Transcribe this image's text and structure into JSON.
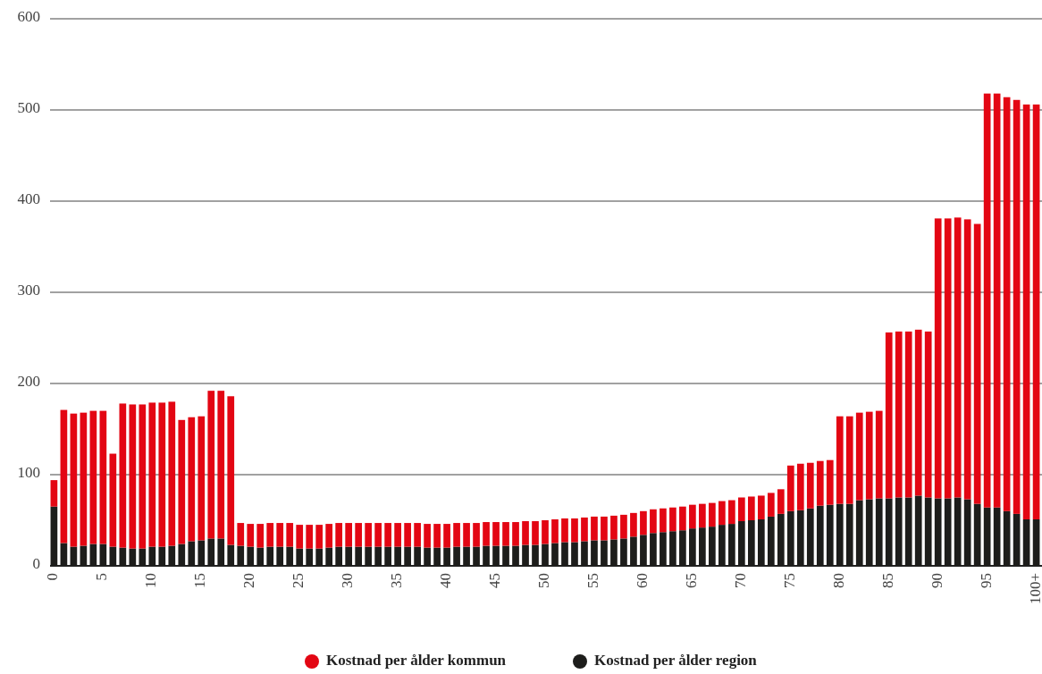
{
  "chart_data": {
    "type": "bar",
    "stacked": true,
    "categories": [
      "0",
      null,
      null,
      null,
      null,
      "5",
      null,
      null,
      null,
      null,
      "10",
      null,
      null,
      null,
      null,
      "15",
      null,
      null,
      null,
      null,
      "20",
      null,
      null,
      null,
      null,
      "25",
      null,
      null,
      null,
      null,
      "30",
      null,
      null,
      null,
      null,
      "35",
      null,
      null,
      null,
      null,
      "40",
      null,
      null,
      null,
      null,
      "45",
      null,
      null,
      null,
      null,
      "50",
      null,
      null,
      null,
      null,
      "55",
      null,
      null,
      null,
      null,
      "60",
      null,
      null,
      null,
      null,
      "65",
      null,
      null,
      null,
      null,
      "70",
      null,
      null,
      null,
      null,
      "75",
      null,
      null,
      null,
      null,
      "80",
      null,
      null,
      null,
      null,
      "85",
      null,
      null,
      null,
      null,
      "90",
      null,
      null,
      null,
      null,
      "95",
      null,
      null,
      null,
      null,
      "100+"
    ],
    "series": [
      {
        "name": "Kostnad per ålder region",
        "color": "#1d1d1b",
        "values": [
          65,
          25,
          21,
          22,
          24,
          24,
          21,
          20,
          19,
          19,
          21,
          21,
          22,
          24,
          27,
          28,
          30,
          30,
          23,
          22,
          21,
          20,
          21,
          21,
          21,
          19,
          19,
          19,
          20,
          21,
          21,
          21,
          21,
          21,
          21,
          21,
          21,
          21,
          20,
          20,
          20,
          21,
          21,
          21,
          22,
          22,
          22,
          22,
          23,
          23,
          24,
          25,
          26,
          26,
          27,
          28,
          28,
          29,
          30,
          32,
          34,
          36,
          37,
          38,
          39,
          41,
          42,
          43,
          45,
          46,
          49,
          50,
          51,
          54,
          57,
          60,
          61,
          63,
          66,
          67,
          68,
          68,
          72,
          73,
          74,
          74,
          75,
          75,
          77,
          75,
          74,
          74,
          75,
          73,
          68,
          64,
          64,
          60,
          57,
          51,
          51
        ]
      },
      {
        "name": "Kostnad per ålder kommun",
        "color": "#e30613",
        "values": [
          29,
          146,
          146,
          146,
          146,
          146,
          102,
          158,
          158,
          158,
          158,
          158,
          158,
          136,
          136,
          136,
          162,
          162,
          163,
          25,
          25,
          26,
          26,
          26,
          26,
          26,
          26,
          26,
          26,
          26,
          26,
          26,
          26,
          26,
          26,
          26,
          26,
          26,
          26,
          26,
          26,
          26,
          26,
          26,
          26,
          26,
          26,
          26,
          26,
          26,
          26,
          26,
          26,
          26,
          26,
          26,
          26,
          26,
          26,
          26,
          26,
          26,
          26,
          26,
          26,
          26,
          26,
          26,
          26,
          26,
          26,
          26,
          26,
          26,
          27,
          50,
          51,
          50,
          49,
          49,
          96,
          96,
          96,
          96,
          96,
          182,
          182,
          182,
          182,
          182,
          307,
          307,
          307,
          307,
          307,
          454,
          454,
          454,
          454,
          455,
          455
        ]
      }
    ],
    "ylim": [
      0,
      600
    ],
    "yticks": [
      0,
      100,
      200,
      300,
      400,
      500,
      600
    ],
    "grid": "y",
    "legend": "bottom"
  }
}
